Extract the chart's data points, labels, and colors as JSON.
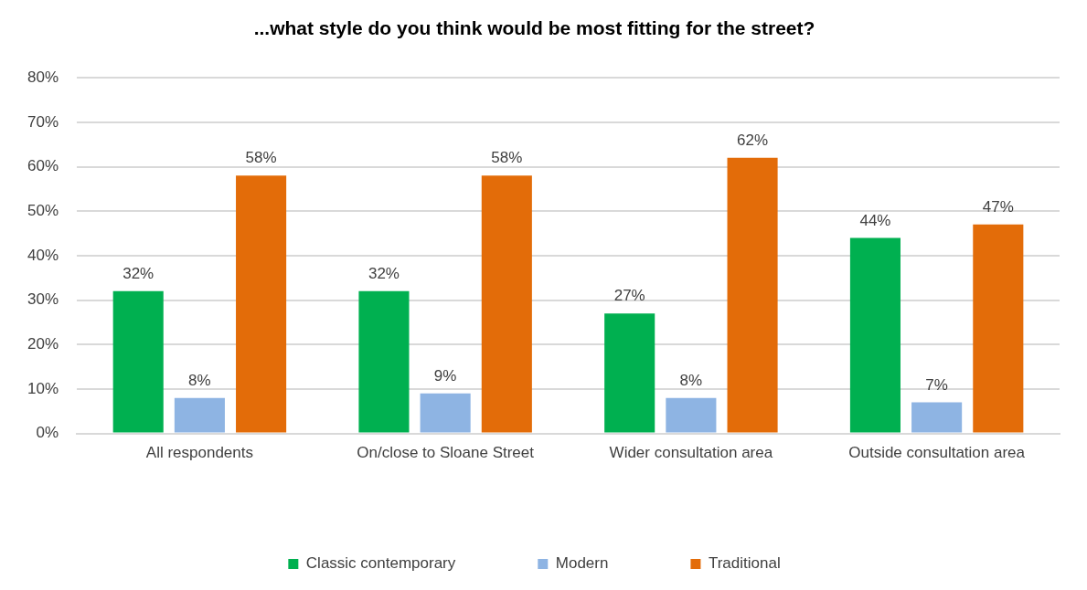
{
  "chart_data": {
    "type": "bar",
    "title": "...what style do you think would be most fitting for the street?",
    "categories": [
      "All respondents",
      "On/close to Sloane Street",
      "Wider consultation area",
      "Outside consultation area"
    ],
    "series": [
      {
        "name": "Classic contemporary",
        "color": "#00b050",
        "values": [
          32,
          32,
          27,
          44
        ],
        "value_labels": [
          "32%",
          "32%",
          "27%",
          "44%"
        ]
      },
      {
        "name": "Modern",
        "color": "#8eb4e3",
        "values": [
          8,
          9,
          8,
          7
        ],
        "value_labels": [
          "8%",
          "9%",
          "8%",
          "7%"
        ]
      },
      {
        "name": "Traditional",
        "color": "#e36c09",
        "values": [
          58,
          58,
          62,
          47
        ],
        "value_labels": [
          "58%",
          "58%",
          "62%",
          "47%"
        ]
      }
    ],
    "ylim": [
      0,
      80
    ],
    "yticks": [
      {
        "value": 0,
        "label": "0%"
      },
      {
        "value": 10,
        "label": "10%"
      },
      {
        "value": 20,
        "label": "20%"
      },
      {
        "value": 30,
        "label": "30%"
      },
      {
        "value": 40,
        "label": "40%"
      },
      {
        "value": 50,
        "label": "50%"
      },
      {
        "value": 60,
        "label": "60%"
      },
      {
        "value": 70,
        "label": "70%"
      },
      {
        "value": 80,
        "label": "80%"
      }
    ],
    "grid": "y",
    "legend": "bottom"
  }
}
